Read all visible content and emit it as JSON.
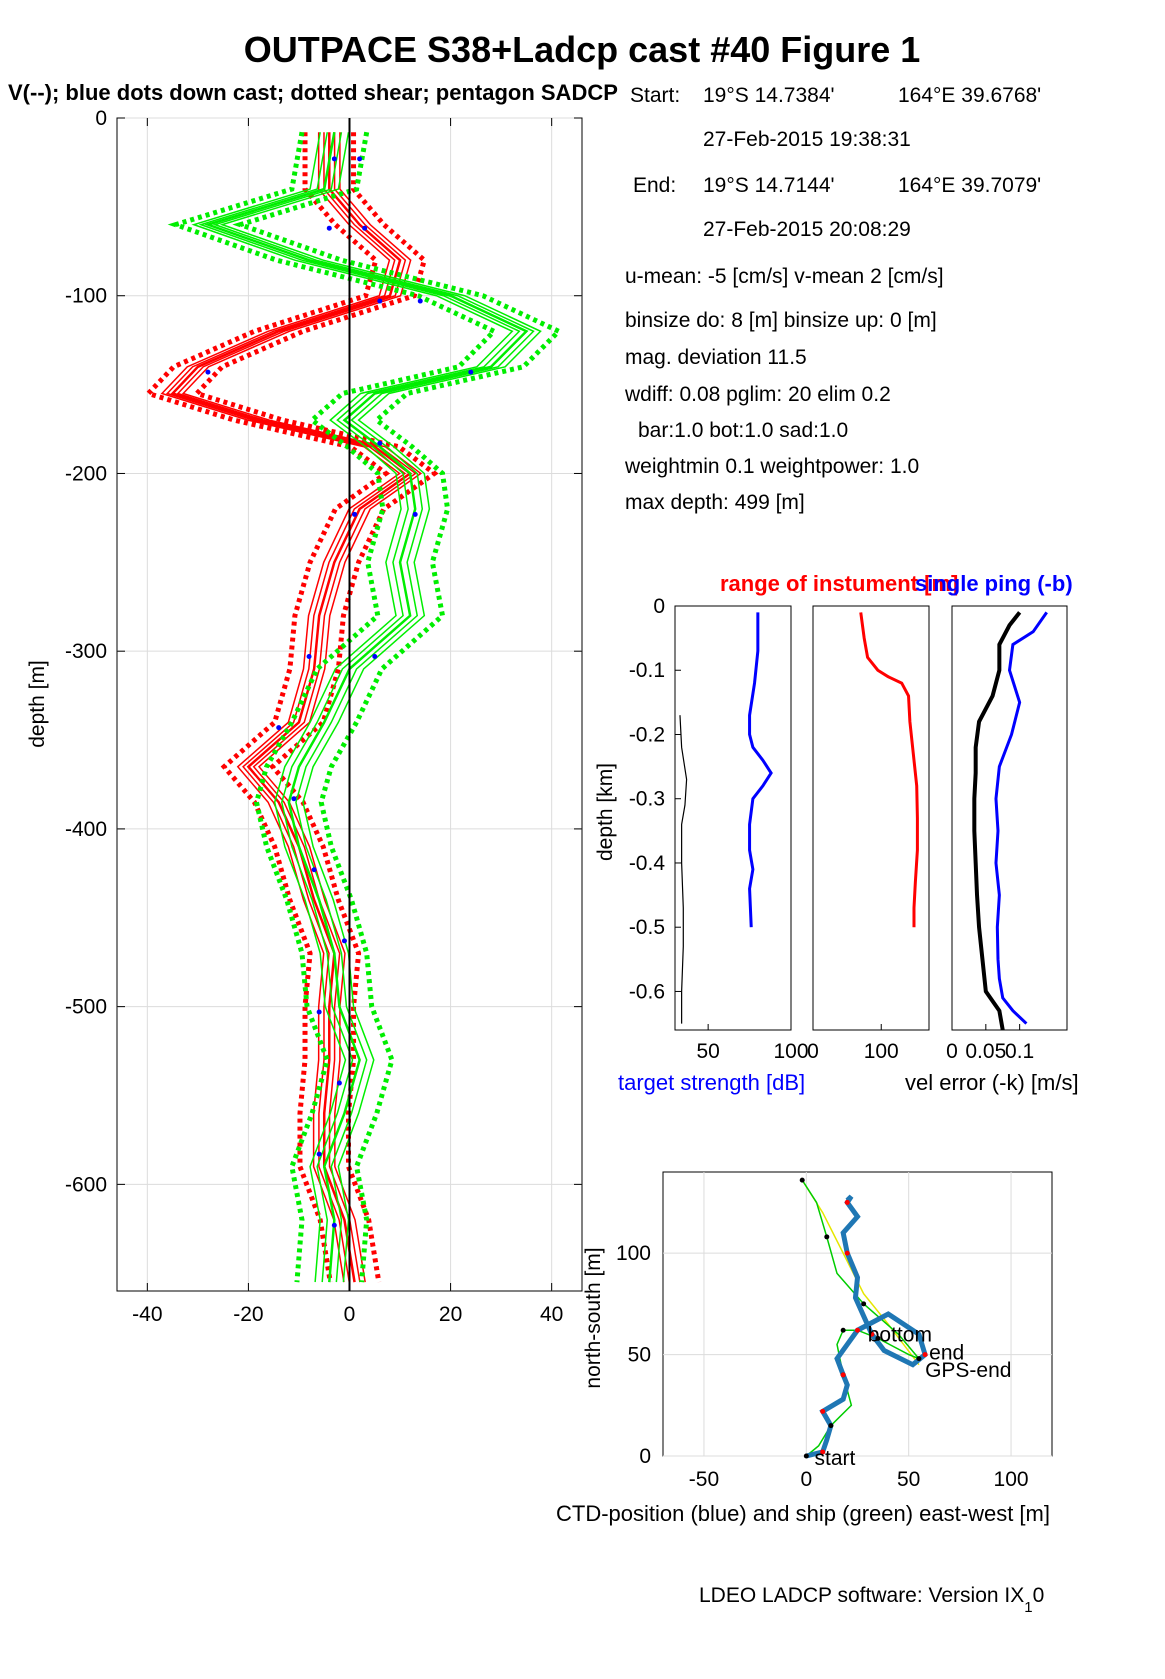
{
  "figure": {
    "title": "OUTPACE S38+Ladcp cast #40  Figure 1",
    "subtitle": "V(--); blue dots down cast; dotted shear; pentagon SADCP",
    "footer": "LDEO LADCP software: Version IX",
    "footer_sub": "1",
    "footer_tail": "0"
  },
  "info": {
    "start_label": "Start:",
    "start_lat": "19°S 14.7384'",
    "start_lon": "164°E 39.6768'",
    "start_time": "27-Feb-2015 19:38:31",
    "end_label": "End:",
    "end_lat": "19°S 14.7144'",
    "end_lon": "164°E 39.7079'",
    "end_time": "27-Feb-2015 20:08:29",
    "means": "u-mean:  -5 [cm/s]    v-mean   2 [cm/s]",
    "binsize": "binsize do: 8 [m]  binsize up:  0 [m]",
    "magdev": "mag. deviation 11.5",
    "wdiff": "wdiff: 0.08  pglim: 20  elim 0.2",
    "bar": "bar:1.0 bot:1.0 sad:1.0",
    "weight": "weightmin 0.1  weightpower: 1.0",
    "maxdepth": "max depth: 499 [m]"
  },
  "colors": {
    "u": "#ff0000",
    "v": "#00ee00",
    "dots": "#0000ff",
    "ctd": "#1f77b4",
    "ship": "#00cc00",
    "ship_line": "#e6e600",
    "axis": "#000000",
    "grid": "#dcdcdc"
  },
  "chart_data": [
    {
      "type": "line",
      "id": "velocity-profile",
      "ylabel": "depth [m]",
      "xlim": [
        -46,
        46
      ],
      "ylim": [
        -660,
        0
      ],
      "xticks": [
        -40,
        -20,
        0,
        20,
        40
      ],
      "yticks": [
        0,
        -100,
        -200,
        -300,
        -400,
        -500,
        -600
      ],
      "xtick_labels": [
        "-40",
        "-20",
        "0",
        "20",
        "40"
      ],
      "ytick_labels": [
        "0",
        "-100",
        "-200",
        "-300",
        "-400",
        "-500",
        "-600"
      ],
      "grid": true,
      "depth": [
        -8,
        -40,
        -60,
        -80,
        -100,
        -120,
        -140,
        -155,
        -170,
        -185,
        -200,
        -220,
        -250,
        -280,
        -310,
        -340,
        -365,
        -385,
        -410,
        -440,
        -470,
        -500,
        -530,
        -560,
        -590,
        -620,
        -655
      ],
      "series": [
        {
          "id": "u",
          "color": "#ff0000",
          "values": [
            -4,
            -4,
            2,
            10,
            8,
            -14,
            -30,
            -35,
            -18,
            5,
            12,
            2,
            -3,
            -6,
            -7,
            -10,
            -20,
            -14,
            -10,
            -7,
            -3,
            -4,
            -4,
            -5,
            -5,
            -1,
            1
          ],
          "spread": 3
        },
        {
          "id": "v",
          "color": "#00ee00",
          "values": [
            -3,
            -5,
            -28,
            -8,
            20,
            35,
            28,
            5,
            -1,
            6,
            12,
            13,
            10,
            12,
            0,
            -5,
            -10,
            -12,
            -10,
            -6,
            -3,
            -2,
            2,
            -1,
            -5,
            -3,
            -4
          ],
          "spread": 4
        }
      ],
      "down_cast_dots": [
        {
          "x": -3,
          "y": -23
        },
        {
          "x": 2,
          "y": -23
        },
        {
          "x": -4,
          "y": -62
        },
        {
          "x": 3,
          "y": -62
        },
        {
          "x": 14,
          "y": -103
        },
        {
          "x": 6,
          "y": -103
        },
        {
          "x": 24,
          "y": -143
        },
        {
          "x": -28,
          "y": -143
        },
        {
          "x": 6,
          "y": -183
        },
        {
          "x": 1,
          "y": -223
        },
        {
          "x": 13,
          "y": -223
        },
        {
          "x": -8,
          "y": -303
        },
        {
          "x": 5,
          "y": -303
        },
        {
          "x": -14,
          "y": -343
        },
        {
          "x": -11,
          "y": -383
        },
        {
          "x": -7,
          "y": -423
        },
        {
          "x": -1,
          "y": -463
        },
        {
          "x": -6,
          "y": -503
        },
        {
          "x": -2,
          "y": -543
        },
        {
          "x": -6,
          "y": -583
        },
        {
          "x": -3,
          "y": -623
        }
      ]
    },
    {
      "type": "line",
      "id": "target-strength",
      "ylabel": "depth [km]",
      "xlabel": "target strength [dB]",
      "xlim": [
        30,
        100
      ],
      "ylim": [
        -0.66,
        0
      ],
      "xtick_labels": [
        "50",
        "100"
      ],
      "xticks": [
        50,
        100
      ],
      "ytick_labels": [
        "0",
        "-0.1",
        "-0.2",
        "-0.3",
        "-0.4",
        "-0.5",
        "-0.6"
      ],
      "yticks": [
        0,
        -0.1,
        -0.2,
        -0.3,
        -0.4,
        -0.5,
        -0.6
      ],
      "series": [
        {
          "color": "#0000ff",
          "x": [
            80,
            80,
            78,
            75,
            75,
            77,
            83,
            88,
            83,
            77,
            75,
            75,
            77,
            75,
            76
          ],
          "y": [
            -0.01,
            -0.07,
            -0.12,
            -0.17,
            -0.2,
            -0.22,
            -0.24,
            -0.26,
            -0.28,
            -0.3,
            -0.34,
            -0.38,
            -0.41,
            -0.44,
            -0.5
          ]
        },
        {
          "color": "#000000",
          "x": [
            33,
            34,
            37,
            36,
            34,
            34,
            35,
            35,
            34,
            34
          ],
          "y": [
            -0.17,
            -0.22,
            -0.27,
            -0.31,
            -0.34,
            -0.4,
            -0.47,
            -0.53,
            -0.6,
            -0.65
          ]
        }
      ]
    },
    {
      "type": "line",
      "id": "range-of-instrument",
      "title": "range of instument [m]",
      "xlim": [
        0,
        170
      ],
      "ylim": [
        -0.66,
        0
      ],
      "xtick_labels": [
        "0",
        "100"
      ],
      "xticks": [
        0,
        100
      ],
      "series": [
        {
          "color": "#ff0000",
          "x": [
            70,
            75,
            80,
            95,
            110,
            130,
            140,
            142,
            147,
            152,
            153,
            153,
            150,
            148,
            148
          ],
          "y": [
            -0.01,
            -0.05,
            -0.08,
            -0.1,
            -0.11,
            -0.12,
            -0.14,
            -0.18,
            -0.23,
            -0.28,
            -0.33,
            -0.38,
            -0.43,
            -0.47,
            -0.5
          ]
        }
      ]
    },
    {
      "type": "line",
      "id": "velocity-error",
      "title": "single ping (-b)",
      "xlabel": "vel error (-k) [m/s]",
      "xlim": [
        0,
        0.17
      ],
      "ylim": [
        -0.66,
        0
      ],
      "xtick_labels": [
        "0",
        "0.05",
        "0.1"
      ],
      "xticks": [
        0,
        0.05,
        0.1
      ],
      "series": [
        {
          "color": "#0000ff",
          "x": [
            0.14,
            0.12,
            0.09,
            0.085,
            0.1,
            0.088,
            0.07,
            0.065,
            0.068,
            0.065,
            0.07,
            0.067,
            0.068,
            0.07,
            0.075,
            0.09,
            0.11
          ],
          "y": [
            -0.01,
            -0.04,
            -0.06,
            -0.1,
            -0.15,
            -0.2,
            -0.25,
            -0.3,
            -0.35,
            -0.4,
            -0.45,
            -0.5,
            -0.55,
            -0.58,
            -0.61,
            -0.63,
            -0.65
          ]
        },
        {
          "color": "#000000",
          "x": [
            0.1,
            0.085,
            0.07,
            0.07,
            0.06,
            0.04,
            0.035,
            0.035,
            0.033,
            0.033,
            0.035,
            0.037,
            0.04,
            0.045,
            0.05,
            0.07,
            0.075
          ],
          "y": [
            -0.01,
            -0.03,
            -0.06,
            -0.1,
            -0.14,
            -0.18,
            -0.22,
            -0.26,
            -0.3,
            -0.35,
            -0.4,
            -0.45,
            -0.5,
            -0.55,
            -0.6,
            -0.63,
            -0.66
          ]
        }
      ]
    },
    {
      "type": "line",
      "id": "position",
      "xlabel": "CTD-position (blue) and ship (green) east-west [m]",
      "ylabel": "north-south [m]",
      "xlim": [
        -70,
        120
      ],
      "ylim": [
        0,
        140
      ],
      "xtick_labels": [
        "-50",
        "0",
        "50",
        "100"
      ],
      "xticks": [
        -50,
        0,
        50,
        100
      ],
      "ytick_labels": [
        "0",
        "50",
        "100"
      ],
      "yticks": [
        0,
        50,
        100
      ],
      "annotations": [
        "start",
        "bottom",
        "end",
        "GPS-end"
      ],
      "ctd": {
        "x": [
          0,
          8,
          10,
          12,
          8,
          18,
          20,
          18,
          15,
          20,
          25,
          40,
          55,
          58,
          52,
          38,
          32,
          24,
          25,
          20,
          18,
          25,
          20,
          22,
          20
        ],
        "y": [
          0,
          2,
          8,
          15,
          22,
          28,
          35,
          40,
          48,
          55,
          62,
          70,
          60,
          50,
          45,
          52,
          60,
          78,
          88,
          100,
          110,
          118,
          125,
          128,
          126
        ]
      },
      "ship": {
        "x": [
          0,
          6,
          12,
          22,
          18,
          15,
          18,
          25,
          35,
          50,
          55,
          45,
          28,
          15,
          10,
          5,
          -2
        ],
        "y": [
          0,
          5,
          15,
          25,
          40,
          55,
          62,
          62,
          58,
          50,
          48,
          60,
          75,
          90,
          108,
          125,
          136
        ]
      },
      "ship_line": {
        "x": [
          -2,
          8,
          18,
          28,
          40,
          55
        ],
        "y": [
          136,
          120,
          100,
          80,
          65,
          45
        ]
      }
    }
  ]
}
